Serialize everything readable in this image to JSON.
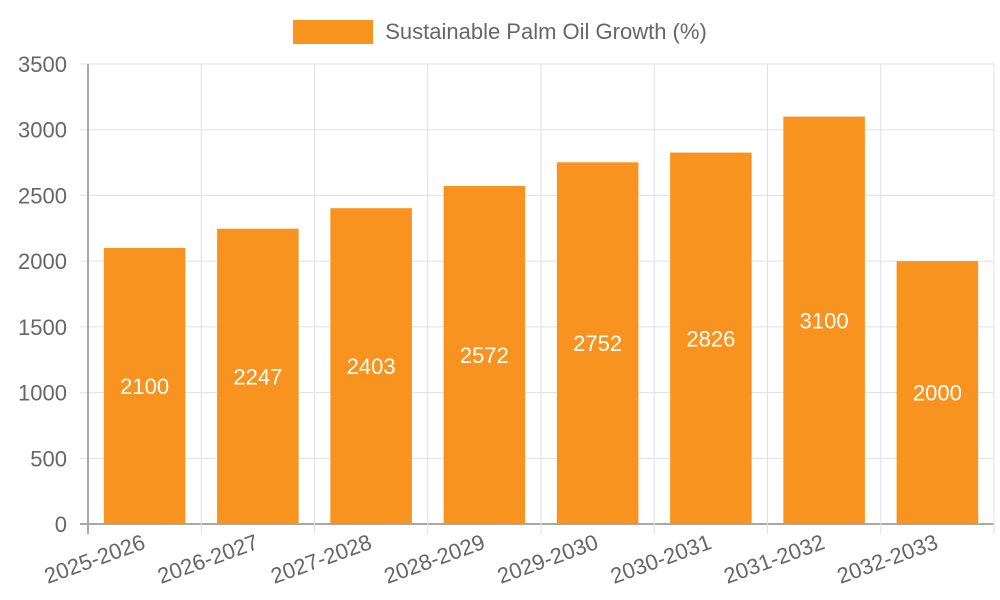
{
  "legend": {
    "label": "Sustainable Palm Oil Growth (%)",
    "color": "#F7931E"
  },
  "colors": {
    "bar": "#F7931E",
    "grid": "#E0E0E0",
    "axis": "#A8A8A8",
    "tick_text": "#666666",
    "bar_label": "#FFFFFF"
  },
  "chart_data": {
    "type": "bar",
    "title": "",
    "xlabel": "",
    "ylabel": "",
    "categories": [
      "2025-2026",
      "2026-2027",
      "2027-2028",
      "2028-2029",
      "2029-2030",
      "2030-2031",
      "2031-2032",
      "2032-2033"
    ],
    "series": [
      {
        "name": "Sustainable Palm Oil Growth (%)",
        "values": [
          2100,
          2247,
          2403,
          2572,
          2752,
          2826,
          3100,
          2000
        ]
      }
    ],
    "ylim": [
      0,
      3500
    ],
    "yticks": [
      0,
      500,
      1000,
      1500,
      2000,
      2500,
      3000,
      3500
    ],
    "grid": true,
    "legend_position": "top",
    "data_labels": true
  }
}
